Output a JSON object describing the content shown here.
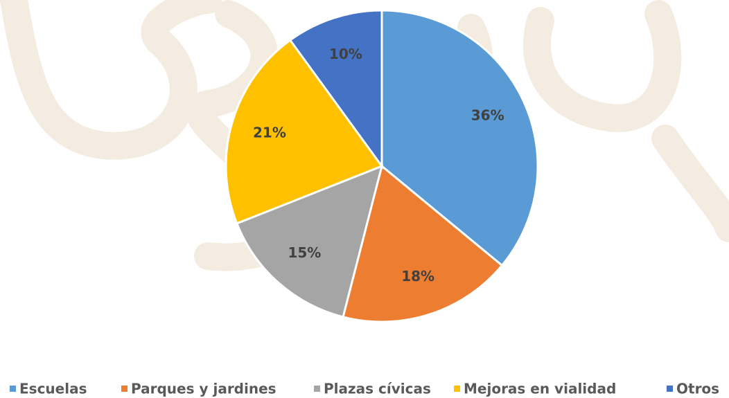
{
  "chart_data": {
    "type": "pie",
    "categories": [
      "Escuelas",
      "Parques y jardines",
      "Plazas cívicas",
      "Mejoras en vialidad",
      "Otros"
    ],
    "values": [
      36,
      18,
      15,
      21,
      10
    ],
    "value_labels": [
      "36%",
      "18%",
      "15%",
      "21%",
      "10%"
    ],
    "colors": [
      "#5b9bd5",
      "#ed7d31",
      "#a5a5a5",
      "#ffc000",
      "#4472c4"
    ],
    "legend": "bottom"
  }
}
